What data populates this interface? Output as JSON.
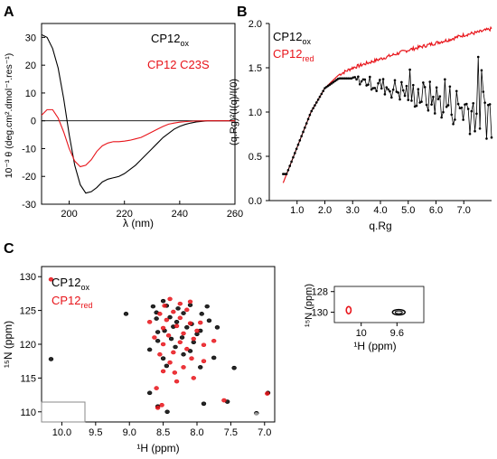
{
  "colors": {
    "ox": "#000000",
    "red": "#e8141a",
    "box": "#888888"
  },
  "panels": {
    "A": {
      "letter": "A",
      "legend": [
        {
          "base": "CP12",
          "sub": "",
          "tail": "ox",
          "color": "#000000"
        },
        {
          "base": "CP12 C23S",
          "sub": "",
          "tail": "",
          "color": "#e8141a"
        }
      ],
      "ylabel": "10⁻³ θ (deg.cm².dmol⁻¹.res⁻¹)",
      "xlabel": "λ (nm)"
    },
    "B": {
      "letter": "B",
      "legend": [
        {
          "base": "CP12",
          "tail": "ox",
          "color": "#000000"
        },
        {
          "base": "CP12",
          "tail": "red",
          "color": "#e8141a"
        }
      ],
      "ylabel": "(q.Rg)²(I(q)/I(0)",
      "xlabel": "q.Rg"
    },
    "C": {
      "letter": "C",
      "legend": [
        {
          "base": "CP12",
          "tail": "ox",
          "color": "#000000"
        },
        {
          "base": "CP12",
          "tail": "red",
          "color": "#e8141a"
        }
      ],
      "ylabel": "¹⁵N (ppm)",
      "xlabel": "¹H (ppm)"
    }
  },
  "chart_data": [
    {
      "panel": "A",
      "type": "line",
      "title": "",
      "xlabel": "λ (nm)",
      "ylabel": "10⁻³ θ (deg.cm².dmol⁻¹.res⁻¹)",
      "xlim": [
        190,
        260
      ],
      "ylim": [
        -30,
        35
      ],
      "xticks": [
        200,
        220,
        240,
        260
      ],
      "yticks": [
        -30,
        -20,
        -10,
        0,
        10,
        20,
        30
      ],
      "zero_line": true,
      "series": [
        {
          "name": "CP12ox",
          "color": "#000000",
          "points": [
            [
              190,
              31
            ],
            [
              192,
              30
            ],
            [
              194,
              26
            ],
            [
              196,
              19
            ],
            [
              198,
              8
            ],
            [
              200,
              -5
            ],
            [
              202,
              -16
            ],
            [
              204,
              -23
            ],
            [
              206,
              -26
            ],
            [
              208,
              -25.5
            ],
            [
              210,
              -24
            ],
            [
              212,
              -22
            ],
            [
              214,
              -21
            ],
            [
              216,
              -20.5
            ],
            [
              218,
              -20
            ],
            [
              220,
              -19
            ],
            [
              222,
              -17.5
            ],
            [
              224,
              -16
            ],
            [
              226,
              -14
            ],
            [
              228,
              -12
            ],
            [
              230,
              -10
            ],
            [
              232,
              -8
            ],
            [
              234,
              -6
            ],
            [
              236,
              -4.5
            ],
            [
              238,
              -3
            ],
            [
              240,
              -2
            ],
            [
              242,
              -1.3
            ],
            [
              244,
              -0.8
            ],
            [
              246,
              -0.4
            ],
            [
              248,
              -0.2
            ],
            [
              250,
              0
            ],
            [
              255,
              0
            ],
            [
              260,
              0
            ]
          ]
        },
        {
          "name": "CP12 C23S",
          "color": "#e8141a",
          "points": [
            [
              190,
              2
            ],
            [
              192,
              4
            ],
            [
              194,
              4
            ],
            [
              196,
              1
            ],
            [
              198,
              -4
            ],
            [
              200,
              -10
            ],
            [
              202,
              -14.5
            ],
            [
              204,
              -16.5
            ],
            [
              206,
              -16
            ],
            [
              208,
              -14
            ],
            [
              210,
              -11
            ],
            [
              212,
              -9
            ],
            [
              214,
              -8
            ],
            [
              216,
              -7.5
            ],
            [
              218,
              -7.5
            ],
            [
              220,
              -7.3
            ],
            [
              222,
              -7
            ],
            [
              224,
              -6.5
            ],
            [
              226,
              -6
            ],
            [
              228,
              -5
            ],
            [
              230,
              -4
            ],
            [
              232,
              -3
            ],
            [
              234,
              -2
            ],
            [
              236,
              -1.2
            ],
            [
              238,
              -0.8
            ],
            [
              240,
              -0.5
            ],
            [
              242,
              -0.3
            ],
            [
              245,
              -0.1
            ],
            [
              250,
              0
            ],
            [
              260,
              0
            ]
          ]
        }
      ]
    },
    {
      "panel": "B",
      "type": "line",
      "title": "",
      "xlabel": "q.Rg",
      "ylabel": "(q.Rg)²(I(q)/I(0)",
      "xlim": [
        0,
        8
      ],
      "ylim": [
        0,
        2
      ],
      "xticks": [
        1.0,
        2.0,
        3.0,
        4.0,
        5.0,
        6.0,
        7.0
      ],
      "yticks": [
        0,
        0.5,
        1.0,
        1.5,
        2.0
      ],
      "series": [
        {
          "name": "CP12red",
          "color": "#e8141a",
          "points": [
            [
              0.5,
              0.2
            ],
            [
              1.0,
              0.6
            ],
            [
              1.5,
              1.0
            ],
            [
              2.0,
              1.27
            ],
            [
              2.5,
              1.42
            ],
            [
              3.0,
              1.5
            ],
            [
              3.5,
              1.55
            ],
            [
              4.0,
              1.6
            ],
            [
              4.5,
              1.65
            ],
            [
              5.0,
              1.7
            ],
            [
              5.5,
              1.74
            ],
            [
              6.0,
              1.78
            ],
            [
              6.5,
              1.82
            ],
            [
              7.0,
              1.87
            ],
            [
              7.5,
              1.9
            ],
            [
              8.0,
              1.94
            ]
          ]
        },
        {
          "name": "CP12ox",
          "color": "#000000",
          "points": [
            [
              0.5,
              0.2
            ],
            [
              1.0,
              0.6
            ],
            [
              1.5,
              1.0
            ],
            [
              2.0,
              1.27
            ],
            [
              2.5,
              1.38
            ],
            [
              3.0,
              1.38
            ],
            [
              3.5,
              1.34
            ],
            [
              4.0,
              1.3
            ],
            [
              4.5,
              1.26
            ],
            [
              5.0,
              1.22
            ],
            [
              5.5,
              1.18
            ],
            [
              6.0,
              1.14
            ],
            [
              6.5,
              1.1
            ],
            [
              7.0,
              1.05
            ],
            [
              7.5,
              1.02
            ],
            [
              8.0,
              1.0
            ]
          ],
          "noise_from_x": 3.0,
          "noise_amplitude": [
            0.06,
            0.55
          ]
        }
      ]
    },
    {
      "panel": "C",
      "type": "scatter",
      "title": "",
      "xlabel": "¹H (ppm)",
      "ylabel": "¹⁵N (ppm)",
      "xlim": [
        10.3,
        6.85
      ],
      "ylim": [
        131.5,
        108.5
      ],
      "xticks": [
        10.0,
        9.5,
        9.0,
        8.5,
        8.0,
        7.5,
        7.0
      ],
      "yticks": [
        110,
        115,
        120,
        125,
        130
      ],
      "series": [
        {
          "name": "CP12ox",
          "color": "#000000",
          "points": [
            [
              10.16,
              117.8
            ],
            [
              9.05,
              124.5
            ],
            [
              8.58,
              110.8
            ],
            [
              8.44,
              110.0
            ],
            [
              8.7,
              112.8
            ],
            [
              7.9,
              111.2
            ],
            [
              7.55,
              111.5
            ],
            [
              7.12,
              109.8
            ],
            [
              6.95,
              112.8
            ],
            [
              7.45,
              116.5
            ],
            [
              7.95,
              116.6
            ],
            [
              8.45,
              116.8
            ],
            [
              8.2,
              118.5
            ],
            [
              8.1,
              119.0
            ],
            [
              7.75,
              118.0
            ],
            [
              8.58,
              120.5
            ],
            [
              8.38,
              120.8
            ],
            [
              8.22,
              121.0
            ],
            [
              8.05,
              120.3
            ],
            [
              7.95,
              122.0
            ],
            [
              7.7,
              122.5
            ],
            [
              8.58,
              121.8
            ],
            [
              8.48,
              122.0
            ],
            [
              8.35,
              122.6
            ],
            [
              8.08,
              123.0
            ],
            [
              7.82,
              123.5
            ],
            [
              8.6,
              123.8
            ],
            [
              8.4,
              124.0
            ],
            [
              8.2,
              124.6
            ],
            [
              7.93,
              124.5
            ],
            [
              7.85,
              125.6
            ],
            [
              8.65,
              125.6
            ],
            [
              8.45,
              125.7
            ],
            [
              8.28,
              125.3
            ],
            [
              8.1,
              125.8
            ],
            [
              8.5,
              126.4
            ],
            [
              8.7,
              119.2
            ],
            [
              8.5,
              117.9
            ],
            [
              8.0,
              121.5
            ],
            [
              8.15,
              122.5
            ],
            [
              8.32,
              119.6
            ],
            [
              8.6,
              124.7
            ],
            [
              8.3,
              123.3
            ]
          ]
        },
        {
          "name": "CP12red",
          "color": "#e8141a",
          "points": [
            [
              10.16,
              129.6
            ],
            [
              8.58,
              110.6
            ],
            [
              8.52,
              111.0
            ],
            [
              7.6,
              111.7
            ],
            [
              6.96,
              112.7
            ],
            [
              8.6,
              113.5
            ],
            [
              8.3,
              114.5
            ],
            [
              8.05,
              115.0
            ],
            [
              8.5,
              116.0
            ],
            [
              8.2,
              116.6
            ],
            [
              7.9,
              117.5
            ],
            [
              8.55,
              118.5
            ],
            [
              8.35,
              118.8
            ],
            [
              8.15,
              119.3
            ],
            [
              8.5,
              120.0
            ],
            [
              8.25,
              120.3
            ],
            [
              8.05,
              120.8
            ],
            [
              8.42,
              121.3
            ],
            [
              8.2,
              121.6
            ],
            [
              8.0,
              122.0
            ],
            [
              8.5,
              122.4
            ],
            [
              8.3,
              122.7
            ],
            [
              8.1,
              123.1
            ],
            [
              8.45,
              123.6
            ],
            [
              8.25,
              123.9
            ],
            [
              8.55,
              124.5
            ],
            [
              8.35,
              124.8
            ],
            [
              8.15,
              125.1
            ],
            [
              8.48,
              125.7
            ],
            [
              8.25,
              126.0
            ],
            [
              8.4,
              126.7
            ],
            [
              8.1,
              126.3
            ],
            [
              7.95,
              123.2
            ],
            [
              8.63,
              121.0
            ],
            [
              7.9,
              119.9
            ],
            [
              8.7,
              123.3
            ],
            [
              8.08,
              117.9
            ],
            [
              8.4,
              117.3
            ],
            [
              7.75,
              120.5
            ],
            [
              8.33,
              115.8
            ]
          ]
        }
      ],
      "inset": {
        "xlim": [
          10.3,
          9.3
        ],
        "ylim": [
          127.5,
          131
        ],
        "xticks": [
          10.0,
          9.6
        ],
        "yticks": [
          128,
          130
        ],
        "xlabel": "¹H (ppm)",
        "ylabel": "¹⁵N (ppm)",
        "series": [
          {
            "name": "CP12red",
            "color": "#e8141a",
            "points": [
              [
                10.14,
                129.8
              ]
            ]
          },
          {
            "name": "CP12ox",
            "color": "#000000",
            "points": [
              [
                9.58,
                130.0
              ]
            ]
          }
        ]
      }
    }
  ]
}
